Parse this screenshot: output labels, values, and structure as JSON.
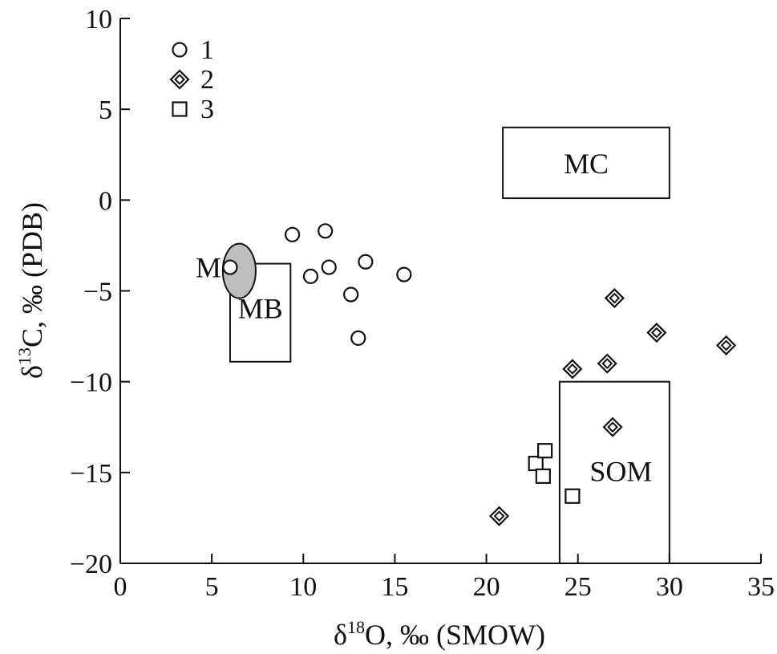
{
  "chart_data": {
    "type": "scatter",
    "title": "",
    "xlabel": {
      "prefix": "δ",
      "sup": "18",
      "suffix": "O, ‰ (SMOW)"
    },
    "ylabel": {
      "prefix": "δ",
      "sup": "13",
      "suffix": "C, ‰ (PDB)"
    },
    "xlim": [
      0,
      35
    ],
    "ylim": [
      -20,
      10
    ],
    "xticks": [
      0,
      5,
      10,
      15,
      20,
      25,
      30,
      35
    ],
    "yticks": [
      -20,
      -15,
      -10,
      -5,
      0,
      5,
      10
    ],
    "grid": false,
    "legend_position": "top-left",
    "series": [
      {
        "name": "1",
        "marker": "circle",
        "points": [
          [
            6.0,
            -3.7
          ],
          [
            9.4,
            -1.9
          ],
          [
            10.4,
            -4.2
          ],
          [
            11.2,
            -1.7
          ],
          [
            11.4,
            -3.7
          ],
          [
            12.6,
            -5.2
          ],
          [
            13.0,
            -7.6
          ],
          [
            13.4,
            -3.4
          ],
          [
            15.5,
            -4.1
          ]
        ]
      },
      {
        "name": "2",
        "marker": "diamond",
        "points": [
          [
            20.7,
            -17.4
          ],
          [
            24.7,
            -9.3
          ],
          [
            26.6,
            -9.0
          ],
          [
            26.9,
            -12.5
          ],
          [
            27.0,
            -5.4
          ],
          [
            29.3,
            -7.3
          ],
          [
            33.1,
            -8.0
          ]
        ]
      },
      {
        "name": "3",
        "marker": "square",
        "points": [
          [
            22.7,
            -14.5
          ],
          [
            23.1,
            -15.2
          ],
          [
            23.2,
            -13.8
          ],
          [
            24.7,
            -16.3
          ]
        ]
      }
    ],
    "regions": [
      {
        "label": "MC",
        "shape": "rect",
        "x": [
          20.9,
          30.0
        ],
        "y": [
          0.1,
          4.0
        ]
      },
      {
        "label": "MB",
        "shape": "rect",
        "x": [
          6.0,
          9.3
        ],
        "y": [
          -8.9,
          -3.5
        ]
      },
      {
        "label": "SOM",
        "shape": "rect",
        "x": [
          24.0,
          30.0
        ],
        "y": [
          -20.0,
          -10.0
        ]
      },
      {
        "label": "M",
        "shape": "ellipse",
        "cx": 6.5,
        "cy": -3.9,
        "rx": 0.9,
        "ry": 1.5,
        "fill": "#bdbdbd"
      }
    ]
  }
}
